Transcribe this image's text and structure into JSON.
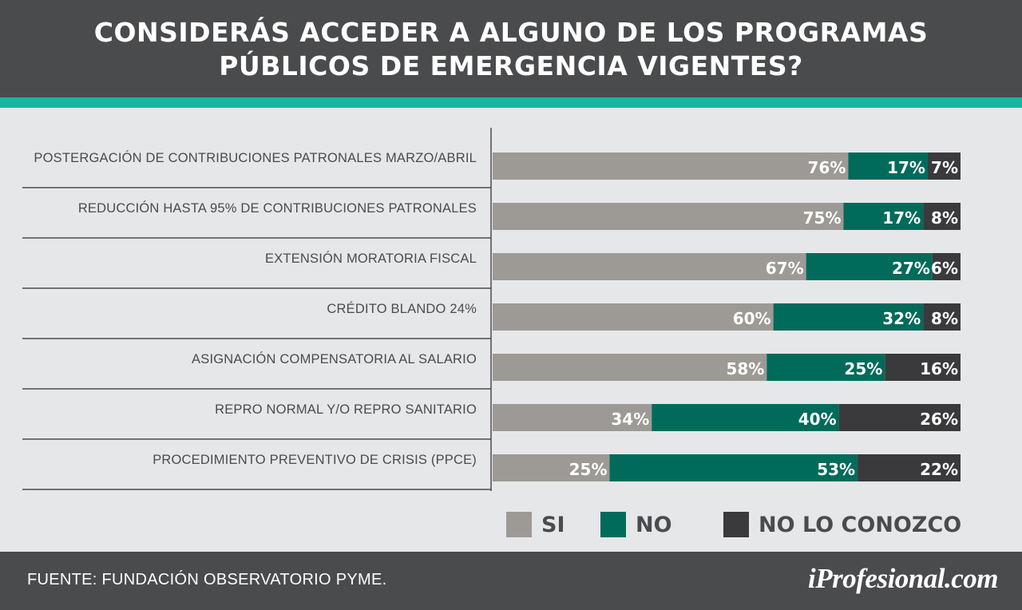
{
  "title": {
    "line1": "CONSIDERÁS ACCEDER A ALGUNO DE LOS PROGRAMAS",
    "line2": "PÚBLICOS DE EMERGENCIA VIGENTES?"
  },
  "colors": {
    "header_bg": "#4a4b4d",
    "accent": "#14b7a1",
    "background": "#e6e7e8",
    "si": "#9d9a96",
    "no": "#006b5a",
    "no_lo_conozco": "#3a3a3c"
  },
  "chart_data": {
    "type": "bar",
    "orientation": "horizontal",
    "stacked": true,
    "unit": "%",
    "xlim": [
      0,
      100
    ],
    "grid": false,
    "legend_position": "bottom",
    "categories": [
      "POSTERGACIÓN DE CONTRIBUCIONES PATRONALES MARZO/ABRIL",
      "REDUCCIÓN HASTA 95% DE CONTRIBUCIONES PATRONALES",
      "EXTENSIÓN MORATORIA FISCAL",
      "CRÉDITO BLANDO 24%",
      "ASIGNACIÓN COMPENSATORIA AL SALARIO",
      "REPRO NORMAL Y/O REPRO SANITARIO",
      "PROCEDIMIENTO PREVENTIVO DE CRISIS (PPCE)"
    ],
    "series": [
      {
        "name": "SI",
        "color": "#9d9a96",
        "values": [
          76,
          75,
          67,
          60,
          58,
          34,
          25
        ]
      },
      {
        "name": "NO",
        "color": "#006b5a",
        "values": [
          17,
          17,
          27,
          32,
          25,
          40,
          53
        ]
      },
      {
        "name": "NO LO CONOZCO",
        "color": "#3a3a3c",
        "values": [
          7,
          8,
          6,
          8,
          16,
          26,
          22
        ]
      }
    ]
  },
  "legend": [
    {
      "label": "SI",
      "color": "#9d9a96"
    },
    {
      "label": "NO",
      "color": "#006b5a"
    },
    {
      "label": "NO LO CONOZCO",
      "color": "#3a3a3c"
    }
  ],
  "footer": {
    "source": "FUENTE:  FUNDACIÓN OBSERVATORIO PYME.",
    "brand": "iProfesional.com"
  }
}
